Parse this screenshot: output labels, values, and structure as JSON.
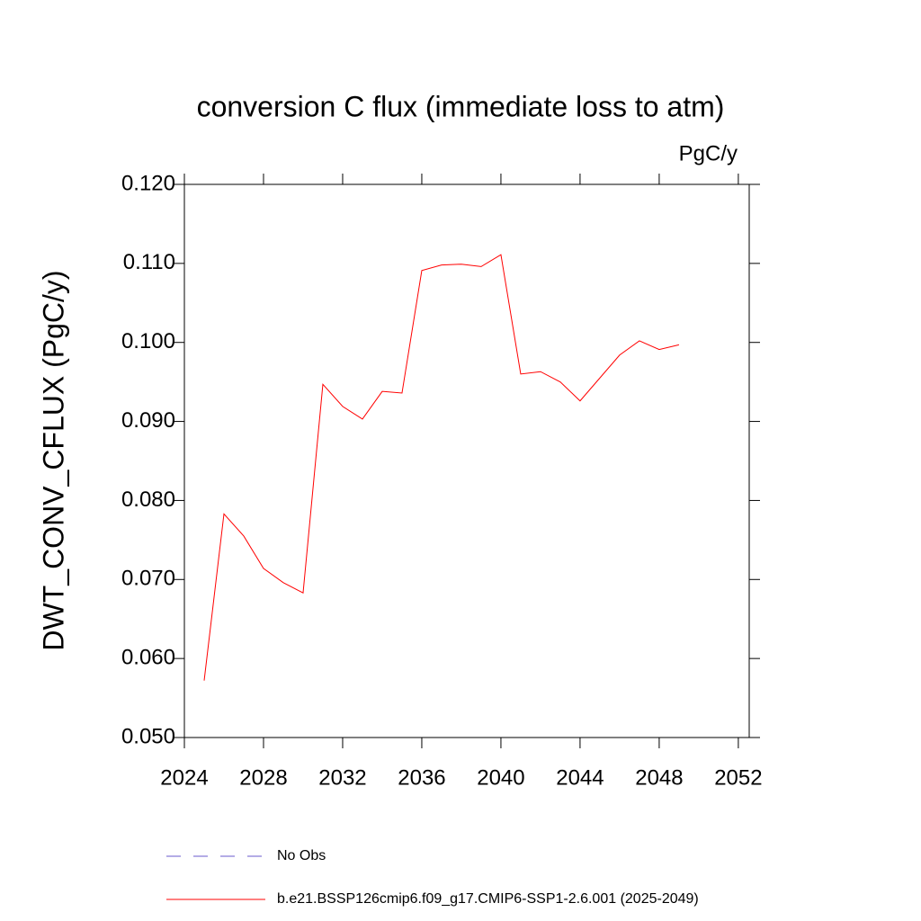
{
  "chart_data": {
    "type": "line",
    "title": "conversion C flux (immediate loss to atm)",
    "subtitle": "PgC/y",
    "y_label": "DWT_CONV_CFLUX  (PgC/y)",
    "x": [
      2025,
      2026,
      2027,
      2028,
      2029,
      2030,
      2031,
      2032,
      2033,
      2034,
      2035,
      2036,
      2037,
      2038,
      2039,
      2040,
      2041,
      2042,
      2043,
      2044,
      2045,
      2046,
      2047,
      2048,
      2049
    ],
    "series": [
      {
        "name": "No Obs",
        "color": "#6a5acd",
        "dashed": true,
        "values": [
          null,
          null,
          null,
          null,
          null,
          null,
          null,
          null,
          null,
          null,
          null,
          null,
          null,
          null,
          null,
          null,
          null,
          null,
          null,
          null,
          null,
          null,
          null,
          null,
          null
        ]
      },
      {
        "name": "b.e21.BSSP126cmip6.f09_g17.CMIP6-SSP1-2.6.001 (2025-2049)",
        "color": "#ff0000",
        "dashed": false,
        "values": [
          0.0572,
          0.0783,
          0.0755,
          0.0714,
          0.0696,
          0.0683,
          0.0947,
          0.0919,
          0.0903,
          0.0938,
          0.0936,
          0.1091,
          0.1098,
          0.1099,
          0.1096,
          0.1111,
          0.096,
          0.0963,
          0.095,
          0.0926,
          0.0955,
          0.0984,
          0.1002,
          0.0991,
          0.0997
        ]
      }
    ],
    "xlim": [
      2024,
      2052.55
    ],
    "xticks": [
      2024,
      2028,
      2032,
      2036,
      2040,
      2044,
      2048,
      2052
    ],
    "ylim": [
      0.05,
      0.12
    ],
    "yticks": [
      {
        "value": 0.05,
        "label": "0.050"
      },
      {
        "value": 0.06,
        "label": "0.060"
      },
      {
        "value": 0.07,
        "label": "0.070"
      },
      {
        "value": 0.08,
        "label": "0.080"
      },
      {
        "value": 0.09,
        "label": "0.090"
      },
      {
        "value": 0.1,
        "label": "0.100"
      },
      {
        "value": 0.11,
        "label": "0.110"
      },
      {
        "value": 0.12,
        "label": "0.120"
      }
    ],
    "grid": false
  }
}
